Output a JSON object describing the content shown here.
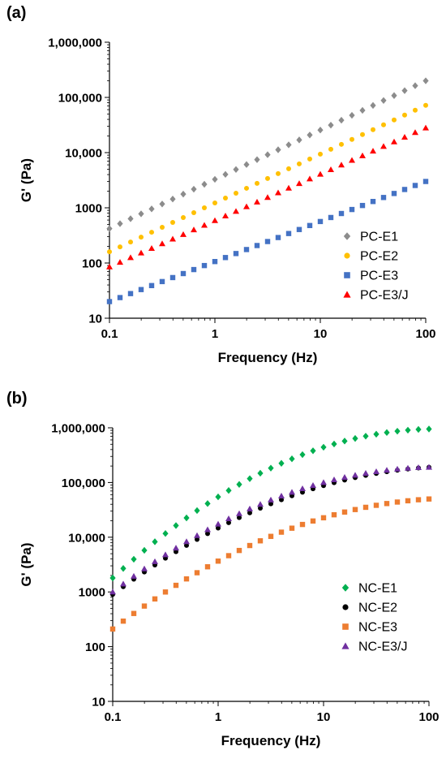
{
  "chart_data": [
    {
      "panel_label": "(a)",
      "type": "scatter",
      "x_scale": "log",
      "y_scale": "log",
      "xlim": [
        0.1,
        100
      ],
      "ylim": [
        10,
        1000000
      ],
      "xlabel": "Frequency (Hz)",
      "ylabel": "G' (Pa)",
      "xticks": [
        {
          "value": 0.1,
          "label": "0.1"
        },
        {
          "value": 1,
          "label": "1"
        },
        {
          "value": 10,
          "label": "10"
        },
        {
          "value": 100,
          "label": "100"
        }
      ],
      "yticks": [
        {
          "value": 10,
          "label": "10"
        },
        {
          "value": 100,
          "label": "100"
        },
        {
          "value": 1000,
          "label": "1000"
        },
        {
          "value": 10000,
          "label": "10,000"
        },
        {
          "value": 100000,
          "label": "100,000"
        },
        {
          "value": 1000000,
          "label": "1,000,000"
        }
      ],
      "grid": false,
      "legend_position": "bottom-right",
      "series": [
        {
          "name": "PC-E1",
          "marker": "diamond",
          "color": "#8c8c8c",
          "x_range": [
            0.1,
            100
          ],
          "y_start": 420,
          "y_end": 200000,
          "curvature": 0,
          "points": 31
        },
        {
          "name": "PC-E2",
          "marker": "circle",
          "color": "#ffc000",
          "x_range": [
            0.1,
            100
          ],
          "y_start": 160,
          "y_end": 72000,
          "curvature": 0,
          "points": 31
        },
        {
          "name": "PC-E3",
          "marker": "square",
          "color": "#4472c4",
          "x_range": [
            0.1,
            100
          ],
          "y_start": 20,
          "y_end": 3000,
          "curvature": 0,
          "points": 31
        },
        {
          "name": "PC-E3/J",
          "marker": "triangle",
          "color": "#ff0000",
          "x_range": [
            0.1,
            100
          ],
          "y_start": 85,
          "y_end": 28000,
          "curvature": 0,
          "points": 31
        }
      ]
    },
    {
      "panel_label": "(b)",
      "type": "scatter",
      "x_scale": "log",
      "y_scale": "log",
      "xlim": [
        0.1,
        100
      ],
      "ylim": [
        10,
        1000000
      ],
      "xlabel": "Frequency (Hz)",
      "ylabel": "G' (Pa)",
      "xticks": [
        {
          "value": 0.1,
          "label": "0.1"
        },
        {
          "value": 1,
          "label": "1"
        },
        {
          "value": 10,
          "label": "10"
        },
        {
          "value": 100,
          "label": "100"
        }
      ],
      "yticks": [
        {
          "value": 10,
          "label": "10"
        },
        {
          "value": 100,
          "label": "100"
        },
        {
          "value": 1000,
          "label": "1000"
        },
        {
          "value": 10000,
          "label": "10,000"
        },
        {
          "value": 100000,
          "label": "100,000"
        },
        {
          "value": 1000000,
          "label": "1,000,000"
        }
      ],
      "grid": false,
      "legend_position": "bottom-right",
      "series": [
        {
          "name": "NC-E1",
          "marker": "diamond",
          "color": "#00b050",
          "x_range": [
            0.1,
            100
          ],
          "y_start": 1800,
          "y_end": 950000,
          "curvature": 0.95,
          "points": 31
        },
        {
          "name": "NC-E2",
          "marker": "circle",
          "color": "#000000",
          "x_range": [
            0.1,
            100
          ],
          "y_start": 900,
          "y_end": 190000,
          "curvature": 0.85,
          "points": 31
        },
        {
          "name": "NC-E3",
          "marker": "square",
          "color": "#ed7d31",
          "x_range": [
            0.1,
            100
          ],
          "y_start": 210,
          "y_end": 50000,
          "curvature": 0.85,
          "points": 31
        },
        {
          "name": "NC-E3/J",
          "marker": "triangle",
          "color": "#7030a0",
          "x_range": [
            0.1,
            100
          ],
          "y_start": 1000,
          "y_end": 190000,
          "curvature": 0.95,
          "points": 31
        }
      ]
    }
  ]
}
